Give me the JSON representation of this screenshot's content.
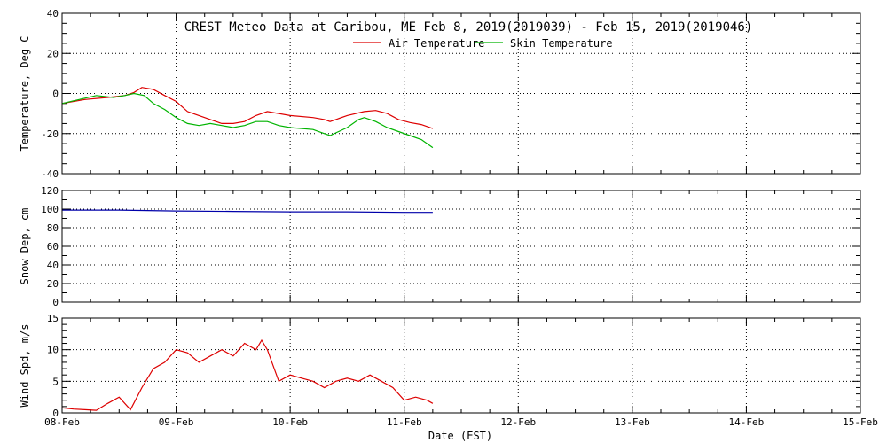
{
  "chart_data": {
    "type": "line",
    "title": "CREST Meteo Data at Caribou, ME   Feb  8, 2019(2019039) - Feb 15, 2019(2019046)",
    "xlabel": "Date (EST)",
    "x_ticks": [
      "08-Feb",
      "09-Feb",
      "10-Feb",
      "11-Feb",
      "12-Feb",
      "13-Feb",
      "14-Feb",
      "15-Feb"
    ],
    "x_unit": "days since 08-Feb 00:00",
    "xlim": [
      0,
      7
    ],
    "grid": true,
    "legend_position": "top-center",
    "colors": {
      "red": "#dd0000",
      "green": "#00b400",
      "blue": "#0000aa"
    },
    "panels": [
      {
        "id": "temperature",
        "ylabel": "Temperature, Deg C",
        "ylim": [
          -40,
          40
        ],
        "yticks": [
          -40,
          -20,
          0,
          20,
          40
        ],
        "series": [
          {
            "name": "Air Temperature",
            "color": "#dd0000",
            "x": [
              0,
              0.2,
              0.4,
              0.55,
              0.63,
              0.7,
              0.8,
              0.9,
              1.0,
              1.1,
              1.2,
              1.3,
              1.4,
              1.5,
              1.6,
              1.7,
              1.8,
              2.0,
              2.2,
              2.3,
              2.35,
              2.5,
              2.65,
              2.75,
              2.85,
              2.95,
              3.05,
              3.15,
              3.25
            ],
            "y": [
              -5,
              -3,
              -2,
              -1,
              0.5,
              3,
              2,
              -1,
              -4,
              -9,
              -11,
              -13,
              -15,
              -15,
              -14,
              -11,
              -9,
              -11,
              -12,
              -13,
              -14,
              -11,
              -9,
              -8.5,
              -10,
              -13,
              -14.5,
              -15.5,
              -17.5
            ]
          },
          {
            "name": "Skin Temperature",
            "color": "#00b400",
            "x": [
              0,
              0.15,
              0.3,
              0.45,
              0.55,
              0.63,
              0.72,
              0.8,
              0.9,
              1.0,
              1.1,
              1.2,
              1.3,
              1.4,
              1.5,
              1.6,
              1.7,
              1.8,
              1.9,
              2.0,
              2.2,
              2.3,
              2.35,
              2.5,
              2.6,
              2.65,
              2.75,
              2.85,
              2.95,
              3.05,
              3.15,
              3.25
            ],
            "y": [
              -5,
              -3,
              -1,
              -2,
              -1,
              0,
              -1,
              -5,
              -8,
              -12,
              -15,
              -16,
              -15,
              -16,
              -17,
              -16,
              -14,
              -14,
              -16,
              -17,
              -18,
              -20,
              -21,
              -17,
              -13,
              -12,
              -14,
              -17,
              -19,
              -21,
              -23,
              -27
            ]
          }
        ]
      },
      {
        "id": "snow",
        "ylabel": "Snow Dep, cm",
        "ylim": [
          0,
          120
        ],
        "yticks": [
          0,
          20,
          40,
          60,
          80,
          100,
          120
        ],
        "series": [
          {
            "name": "",
            "color": "#0000aa",
            "x": [
              0,
              0.5,
              1.0,
              1.5,
              2.0,
              2.5,
              3.0,
              3.25
            ],
            "y": [
              99,
              99,
              98,
              97.5,
              97,
              97,
              96.5,
              96.5
            ]
          }
        ]
      },
      {
        "id": "wind",
        "ylabel": "Wind Spd, m/s",
        "ylim": [
          0,
          15
        ],
        "yticks": [
          0,
          5,
          10,
          15
        ],
        "series": [
          {
            "name": "",
            "color": "#dd0000",
            "x": [
              0,
              0.1,
              0.2,
              0.3,
              0.4,
              0.5,
              0.6,
              0.7,
              0.8,
              0.9,
              1.0,
              1.1,
              1.2,
              1.3,
              1.4,
              1.5,
              1.6,
              1.7,
              1.75,
              1.8,
              1.9,
              2.0,
              2.1,
              2.2,
              2.3,
              2.4,
              2.5,
              2.6,
              2.7,
              2.8,
              2.9,
              3.0,
              3.1,
              3.2,
              3.25
            ],
            "y": [
              0.8,
              0.6,
              0.5,
              0.4,
              1.5,
              2.5,
              0.5,
              4,
              7,
              8,
              10,
              9.5,
              8,
              9,
              10,
              9,
              11,
              10,
              11.5,
              10,
              5,
              6,
              5.5,
              5,
              4,
              5,
              5.5,
              5,
              6,
              5,
              4,
              2,
              2.5,
              2,
              1.5
            ]
          }
        ]
      }
    ]
  }
}
